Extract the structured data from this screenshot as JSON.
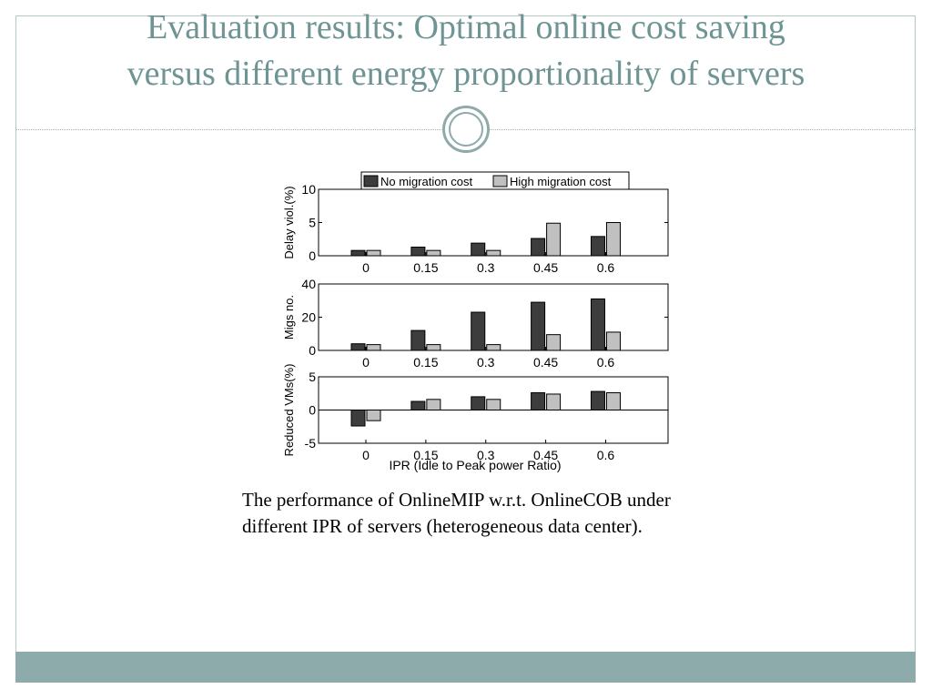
{
  "slide": {
    "title_line1": "Evaluation results: Optimal online cost saving",
    "title_line2": "versus different energy proportionality of servers",
    "caption_line1": "The performance of OnlineMIP w.r.t. OnlineCOB under",
    "caption_line2": "different IPR of servers (heterogeneous data center)."
  },
  "colors": {
    "title": "#6e9494",
    "accent_band": "#8dabab",
    "bar_no_migration": "#3d3d3d",
    "bar_high_migration": "#c0c0c0"
  },
  "chart_data": {
    "type": "bar",
    "xlabel": "IPR (Idle to Peak power Ratio)",
    "categories": [
      "0",
      "0.15",
      "0.3",
      "0.45",
      "0.6"
    ],
    "legend": [
      "No migration cost",
      "High migration cost"
    ],
    "legend_placement": "top",
    "grid": false,
    "panels": [
      {
        "ylabel": "Delay viol.(%)",
        "ylim": [
          0,
          10
        ],
        "yticks": [
          "0",
          "5",
          "10"
        ],
        "series": [
          {
            "name": "No migration cost",
            "values": [
              0.8,
              1.3,
              1.9,
              2.6,
              2.9
            ]
          },
          {
            "name": "High migration cost",
            "values": [
              0.8,
              0.8,
              0.8,
              4.9,
              5.0
            ]
          }
        ]
      },
      {
        "ylabel": "Migs no.",
        "ylim": [
          0,
          40
        ],
        "yticks": [
          "0",
          "20",
          "40"
        ],
        "series": [
          {
            "name": "No migration cost",
            "values": [
              4,
              12,
              23,
              29,
              31
            ]
          },
          {
            "name": "High migration cost",
            "values": [
              3.5,
              3.5,
              3.5,
              9.5,
              11
            ]
          }
        ]
      },
      {
        "ylabel": "Reduced VMs(%)",
        "ylim": [
          -5,
          5
        ],
        "yticks": [
          "-5",
          "0",
          "5"
        ],
        "series": [
          {
            "name": "No migration cost",
            "values": [
              -2.4,
              1.3,
              2.0,
              2.6,
              2.8
            ]
          },
          {
            "name": "High migration cost",
            "values": [
              -1.6,
              1.6,
              1.6,
              2.4,
              2.6
            ]
          }
        ]
      }
    ]
  }
}
